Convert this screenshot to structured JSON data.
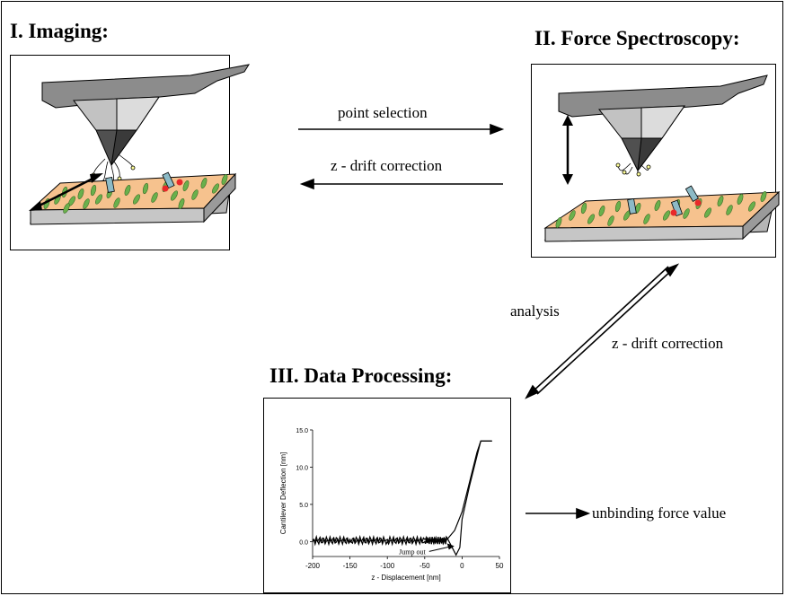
{
  "titles": {
    "imaging": "I. Imaging:",
    "force": "II. Force Spectroscopy:",
    "processing": "III. Data Processing:"
  },
  "arrows": {
    "point_selection": "point selection",
    "z_drift_1": "z - drift correction",
    "analysis": "analysis",
    "z_drift_2": "z - drift correction",
    "unbinding": "unbinding force value"
  },
  "chart_data": {
    "type": "line",
    "xlabel": "z - Displacement [nm]",
    "ylabel": "Cantilever Deflection [nm]",
    "xlim": [
      -200,
      50
    ],
    "ylim": [
      -2,
      15
    ],
    "xticks": [
      "-200",
      "-150",
      "-100",
      "-50",
      "0",
      "50"
    ],
    "yticks": [
      "0.0",
      "5.0",
      "10.0",
      "15.0"
    ],
    "annotation": "Jump out",
    "series": [
      {
        "x": [
          -200,
          -150,
          -100,
          -50,
          -20,
          -10,
          0,
          10,
          20,
          25,
          40
        ],
        "y": [
          0,
          0,
          0,
          0,
          0.3,
          1.5,
          4,
          8,
          12,
          13.5,
          13.5
        ]
      },
      {
        "x": [
          -200,
          -150,
          -100,
          -50,
          -20,
          -8,
          -3,
          0,
          10,
          20,
          25,
          40
        ],
        "y": [
          0.3,
          0.3,
          0.3,
          0.3,
          0.5,
          -1.8,
          -0.8,
          3,
          7.5,
          11.5,
          13.5,
          13.5
        ]
      }
    ]
  },
  "colors": {
    "surface_top": "#f6c28e",
    "surface_side": "#b5b5b5",
    "molecule": "#6ab04c",
    "receptor": "#8cbac6",
    "highlight": "#e8282a"
  }
}
